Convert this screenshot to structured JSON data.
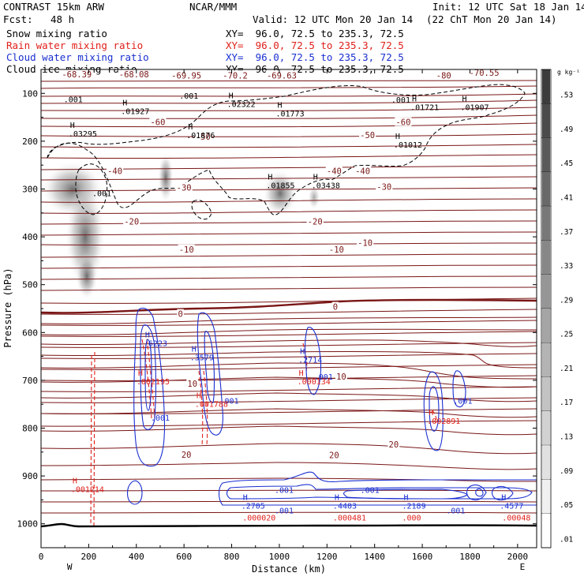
{
  "header": {
    "model": "CONTRAST 15km ARW",
    "fcst_label": "Fcst:",
    "fcst_value": "48 h",
    "center": "NCAR/MMM",
    "valid": "Valid: 12 UTC Mon 20 Jan 14",
    "init": "Init: 12 UTC Sat 18 Jan 14",
    "valid_local": "(22 ChT Mon 20 Jan 14)"
  },
  "fields": [
    {
      "name": "Snow mixing ratio",
      "xy": "XY=  96.0, 72.5 to 235.3, 72.5",
      "color": "#000000"
    },
    {
      "name": "Rain water mixing ratio",
      "xy": "XY=  96.0, 72.5 to 235.3, 72.5",
      "color": "#e0201a"
    },
    {
      "name": "Cloud water mixing ratio",
      "xy": "XY=  96.0, 72.5 to 235.3, 72.5",
      "color": "#1a2fd0"
    },
    {
      "name": "Cloud ice mixing ratio",
      "xy": "XY=  96.0, 72.5 to 235.3, 72.5",
      "color": "#000000"
    }
  ],
  "colorbar": {
    "unit": "g kg⁻¹",
    "labels": [
      ".53",
      ".49",
      ".45",
      ".41",
      ".37",
      ".33",
      ".29",
      ".25",
      ".21",
      ".17",
      ".13",
      ".09",
      ".05",
      ".01"
    ]
  },
  "chart_data": {
    "type": "contour",
    "xlabel": "Distance (km)",
    "ylabel": "Pressure (hPa)",
    "xlim": [
      0,
      2080
    ],
    "ylim": [
      1050,
      50
    ],
    "x_ticks": [
      0,
      200,
      400,
      600,
      800,
      1000,
      1200,
      1400,
      1600,
      1800,
      2000
    ],
    "y_ticks": [
      100,
      200,
      300,
      400,
      500,
      600,
      700,
      800,
      900,
      1000
    ],
    "x_end_labels": {
      "left": "W",
      "right": "E"
    },
    "temperature_labels": [
      {
        "text": "-68.39",
        "x": 150,
        "p": 60
      },
      {
        "text": "-68.08",
        "x": 390,
        "p": 60
      },
      {
        "text": "-69.95",
        "x": 610,
        "p": 62
      },
      {
        "text": "-70.2",
        "x": 815,
        "p": 62
      },
      {
        "text": "-69.63",
        "x": 1010,
        "p": 62
      },
      {
        "text": "-80",
        "x": 1690,
        "p": 62
      },
      {
        "text": "-70.55",
        "x": 1860,
        "p": 57
      },
      {
        "text": "-60",
        "x": 490,
        "p": 160
      },
      {
        "text": "-60",
        "x": 1520,
        "p": 160
      },
      {
        "text": "-50",
        "x": 680,
        "p": 190
      },
      {
        "text": "-50",
        "x": 1370,
        "p": 187
      },
      {
        "text": "-40",
        "x": 310,
        "p": 262
      },
      {
        "text": "-40",
        "x": 1230,
        "p": 262
      },
      {
        "text": "-40",
        "x": 1350,
        "p": 262
      },
      {
        "text": "-30",
        "x": 600,
        "p": 297
      },
      {
        "text": "-30",
        "x": 1440,
        "p": 295
      },
      {
        "text": "-20",
        "x": 380,
        "p": 368
      },
      {
        "text": "-20",
        "x": 1150,
        "p": 368
      },
      {
        "text": "-10",
        "x": 610,
        "p": 426
      },
      {
        "text": "-10",
        "x": 1240,
        "p": 426
      },
      {
        "text": "-10",
        "x": 1360,
        "p": 412
      },
      {
        "text": "0",
        "x": 585,
        "p": 561
      },
      {
        "text": "0",
        "x": 1235,
        "p": 546
      },
      {
        "text": "10",
        "x": 1260,
        "p": 692
      },
      {
        "text": "10",
        "x": 635,
        "p": 707
      },
      {
        "text": "20",
        "x": 610,
        "p": 855
      },
      {
        "text": "20",
        "x": 1230,
        "p": 856
      },
      {
        "text": "20",
        "x": 1480,
        "p": 834
      }
    ],
    "maxima": [
      {
        "h": true,
        "text": ".01927",
        "x": 375,
        "p": 135,
        "color": "#000000"
      },
      {
        "h": true,
        "text": ".02322",
        "x": 820,
        "p": 120,
        "color": "#000000"
      },
      {
        "h": true,
        "text": ".01773",
        "x": 1025,
        "p": 140,
        "color": "#000000"
      },
      {
        "h": true,
        "text": ".01721",
        "x": 1590,
        "p": 127,
        "color": "#000000"
      },
      {
        "h": true,
        "text": ".01907",
        "x": 1800,
        "p": 127,
        "color": "#000000"
      },
      {
        "h": true,
        "text": ".03295",
        "x": 155,
        "p": 182,
        "color": "#000000"
      },
      {
        "h": true,
        "text": ".01876",
        "x": 650,
        "p": 185,
        "color": "#000000"
      },
      {
        "h": true,
        "text": ".01012",
        "x": 1520,
        "p": 205,
        "color": "#000000"
      },
      {
        "h": true,
        "text": ".01855",
        "x": 985,
        "p": 290,
        "color": "#000000"
      },
      {
        "h": true,
        "text": ".03438",
        "x": 1175,
        "p": 290,
        "color": "#000000"
      },
      {
        "h": false,
        "text": ".001",
        "x": 135,
        "p": 110,
        "color": "#000000"
      },
      {
        "h": false,
        "text": ".001",
        "x": 620,
        "p": 103,
        "color": "#000000"
      },
      {
        "h": false,
        "text": ".001",
        "x": 1510,
        "p": 111,
        "color": "#000000"
      },
      {
        "h": false,
        "text": ".001",
        "x": 255,
        "p": 307,
        "color": "#000000"
      },
      {
        "h": true,
        "text": ".6223",
        "x": 470,
        "p": 620,
        "color": "#1a2fd0"
      },
      {
        "h": true,
        "text": ".3579",
        "x": 665,
        "p": 650,
        "color": "#1a2fd0"
      },
      {
        "h": true,
        "text": ".2714",
        "x": 1120,
        "p": 655,
        "color": "#1a2fd0"
      },
      {
        "h": false,
        "text": ".001",
        "x": 500,
        "p": 776,
        "color": "#1a2fd0"
      },
      {
        "h": false,
        "text": ".001",
        "x": 790,
        "p": 741,
        "color": "#1a2fd0"
      },
      {
        "h": false,
        "text": ".001",
        "x": 1185,
        "p": 690,
        "color": "#1a2fd0"
      },
      {
        "h": false,
        "text": ".001",
        "x": 1770,
        "p": 741,
        "color": "#1a2fd0"
      },
      {
        "h": true,
        "text": ".002195",
        "x": 440,
        "p": 700,
        "color": "#e0201a"
      },
      {
        "h": true,
        "text": ".001788",
        "x": 685,
        "p": 747,
        "color": "#e0201a"
      },
      {
        "h": true,
        "text": ".000134",
        "x": 1115,
        "p": 700,
        "color": "#e0201a"
      },
      {
        "h": true,
        "text": ".002891",
        "x": 1660,
        "p": 783,
        "color": "#e0201a"
      },
      {
        "h": true,
        "text": ".001214",
        "x": 165,
        "p": 925,
        "color": "#e0201a"
      },
      {
        "h": true,
        "text": ".2705",
        "x": 880,
        "p": 960,
        "color": "#1a2fd0"
      },
      {
        "h": true,
        "text": ".4403",
        "x": 1265,
        "p": 960,
        "color": "#1a2fd0"
      },
      {
        "h": true,
        "text": ".2189",
        "x": 1555,
        "p": 960,
        "color": "#1a2fd0"
      },
      {
        "h": true,
        "text": ".4577",
        "x": 1965,
        "p": 960,
        "color": "#1a2fd0"
      },
      {
        "h": false,
        "text": ".001",
        "x": 1020,
        "p": 927,
        "color": "#1a2fd0"
      },
      {
        "h": false,
        "text": ".001",
        "x": 1380,
        "p": 927,
        "color": "#1a2fd0"
      },
      {
        "h": false,
        "text": ".001",
        "x": 1020,
        "p": 970,
        "color": "#1a2fd0"
      },
      {
        "h": false,
        "text": ".001",
        "x": 1740,
        "p": 970,
        "color": "#1a2fd0"
      },
      {
        "h": false,
        "text": ".000020",
        "x": 885,
        "p": 985,
        "color": "#e0201a"
      },
      {
        "h": false,
        "text": ".000481",
        "x": 1265,
        "p": 985,
        "color": "#e0201a"
      },
      {
        "h": false,
        "text": ".000",
        "x": 1555,
        "p": 985,
        "color": "#e0201a"
      },
      {
        "h": false,
        "text": ".00048",
        "x": 1975,
        "p": 985,
        "color": "#e0201a"
      }
    ]
  }
}
